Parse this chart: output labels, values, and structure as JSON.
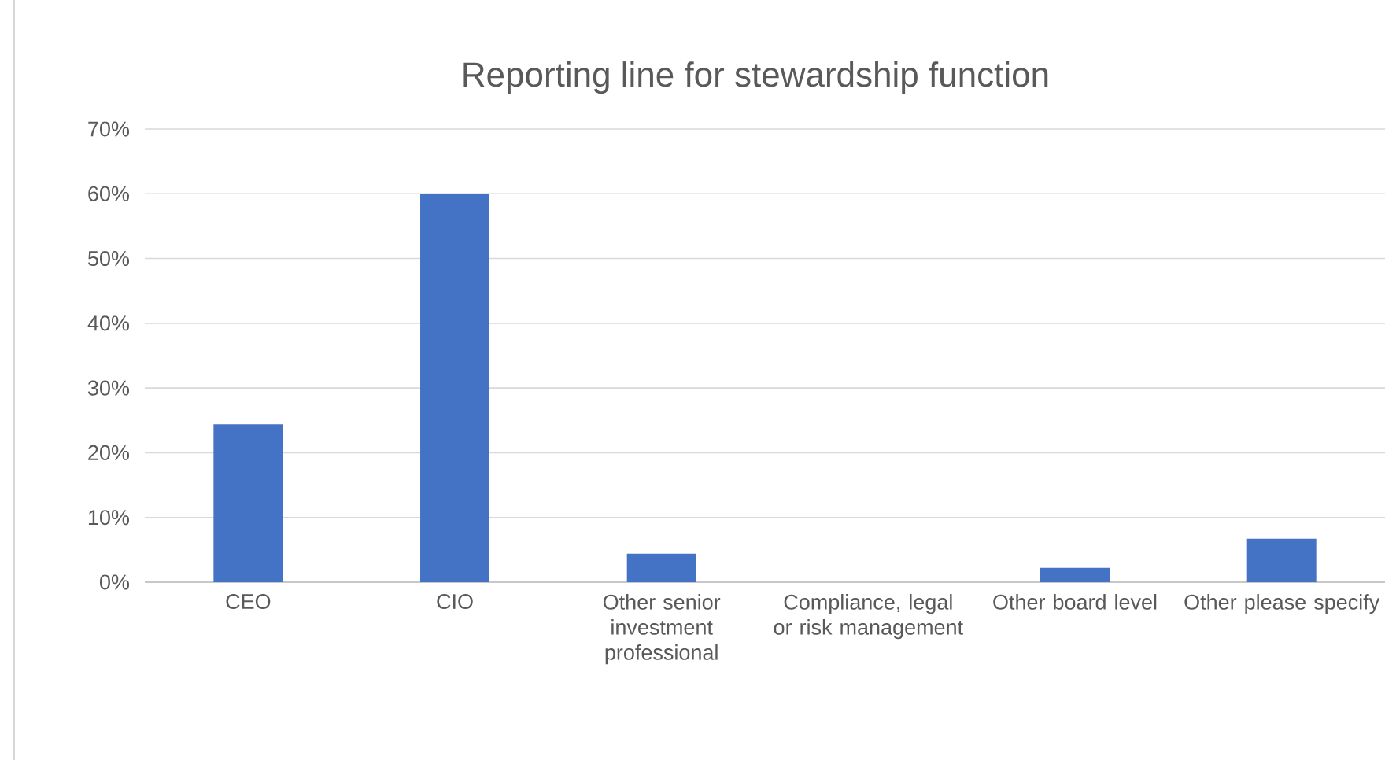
{
  "chart_data": {
    "type": "bar",
    "title": "Reporting line for stewardship function",
    "categories": [
      "CEO",
      "CIO",
      "Other senior investment professional",
      "Compliance, legal or risk management",
      "Other board level",
      "Other please specify"
    ],
    "values": [
      24.4,
      60,
      4.4,
      0,
      2.2,
      6.7
    ],
    "color": "#4472c4",
    "ylim": [
      0,
      70
    ],
    "yticks": [
      {
        "value": 0,
        "label": "0%"
      },
      {
        "value": 10,
        "label": "10%"
      },
      {
        "value": 20,
        "label": "20%"
      },
      {
        "value": 30,
        "label": "30%"
      },
      {
        "value": 40,
        "label": "40%"
      },
      {
        "value": 50,
        "label": "50%"
      },
      {
        "value": 60,
        "label": "60%"
      },
      {
        "value": 70,
        "label": "70%"
      }
    ],
    "grid": "y"
  }
}
